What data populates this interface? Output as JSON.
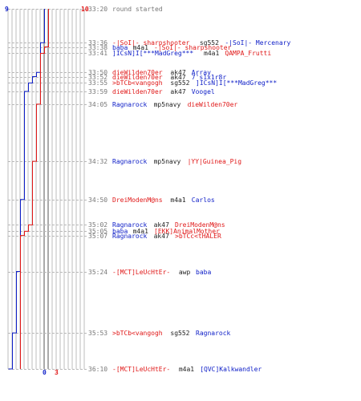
{
  "score_labels": {
    "blue_start": "9",
    "red_start": "10",
    "blue_end": "0",
    "red_end": "3"
  },
  "colors": {
    "blue": "#1020c8",
    "red": "#e01818",
    "dark": "#222222",
    "gray": "#777777",
    "grid": "#bdbdbd",
    "grid_dark": "#555555",
    "dash": "#b8b8b8"
  },
  "events": [
    {
      "time": "33:20",
      "parts": [
        {
          "t": "round started",
          "c": "gray"
        }
      ]
    },
    {
      "time": "33:36",
      "parts": [
        {
          "t": "-|SoI|- sharpshooter",
          "c": "red"
        },
        {
          "t": " sg552 ",
          "c": "dark"
        },
        {
          "t": "-|SoI|- Mercenary",
          "c": "blue"
        }
      ]
    },
    {
      "time": "33:38",
      "parts": [
        {
          "t": "baba",
          "c": "blue"
        },
        {
          "t": " m4a1 ",
          "c": "dark"
        },
        {
          "t": "-|SoI|- sharpshooter",
          "c": "red"
        }
      ]
    },
    {
      "time": "33:41",
      "parts": [
        {
          "t": "]ICsN]I[***MadGreg***",
          "c": "blue"
        },
        {
          "t": " m4a1 ",
          "c": "dark"
        },
        {
          "t": "QAMPA_Frutti",
          "c": "red"
        }
      ]
    },
    {
      "time": "33:50",
      "parts": [
        {
          "t": "dieWilden70er",
          "c": "red"
        },
        {
          "t": " ak47 ",
          "c": "dark"
        },
        {
          "t": "Array",
          "c": "blue"
        }
      ]
    },
    {
      "time": "33:52",
      "parts": [
        {
          "t": "dieWilden70er",
          "c": "red"
        },
        {
          "t": " ak47 ",
          "c": "dark"
        },
        {
          "t": "7's1x1r8r",
          "c": "blue"
        }
      ]
    },
    {
      "time": "33:55",
      "parts": [
        {
          "t": ">bTCb<vangogh",
          "c": "red"
        },
        {
          "t": " sg552 ",
          "c": "dark"
        },
        {
          "t": "]ICsN]I[***MadGreg***",
          "c": "blue"
        }
      ]
    },
    {
      "time": "33:59",
      "parts": [
        {
          "t": "dieWilden70er",
          "c": "red"
        },
        {
          "t": " ak47 ",
          "c": "dark"
        },
        {
          "t": "Voogel",
          "c": "blue"
        }
      ]
    },
    {
      "time": "34:05",
      "parts": [
        {
          "t": "Ragnarock",
          "c": "blue"
        },
        {
          "t": " mp5navy ",
          "c": "dark"
        },
        {
          "t": "dieWilden70er",
          "c": "red"
        }
      ]
    },
    {
      "time": "34:32",
      "parts": [
        {
          "t": "Ragnarock",
          "c": "blue"
        },
        {
          "t": " mp5navy ",
          "c": "dark"
        },
        {
          "t": "|YY|Guinea_Pig",
          "c": "red"
        }
      ]
    },
    {
      "time": "34:50",
      "parts": [
        {
          "t": "DreiModenM@ns",
          "c": "red"
        },
        {
          "t": " m4a1 ",
          "c": "dark"
        },
        {
          "t": "Carlos",
          "c": "blue"
        }
      ]
    },
    {
      "time": "35:02",
      "parts": [
        {
          "t": "Ragnarock",
          "c": "blue"
        },
        {
          "t": " ak47 ",
          "c": "dark"
        },
        {
          "t": "DreiModenM@ns",
          "c": "red"
        }
      ]
    },
    {
      "time": "35:05",
      "parts": [
        {
          "t": "baba",
          "c": "blue"
        },
        {
          "t": " m4a1 ",
          "c": "dark"
        },
        {
          "t": "[EKK]AnimalMother",
          "c": "red"
        }
      ]
    },
    {
      "time": "35:07",
      "parts": [
        {
          "t": "Ragnarock",
          "c": "blue"
        },
        {
          "t": " ak47 ",
          "c": "dark"
        },
        {
          "t": ">bTCc<tHALER",
          "c": "red"
        }
      ]
    },
    {
      "time": "35:24",
      "parts": [
        {
          "t": "-[MCT]LeUcHtEr-",
          "c": "red"
        },
        {
          "t": " awp ",
          "c": "dark"
        },
        {
          "t": "baba",
          "c": "blue"
        }
      ]
    },
    {
      "time": "35:53",
      "parts": [
        {
          "t": ">bTCb<vangogh",
          "c": "red"
        },
        {
          "t": " sg552 ",
          "c": "dark"
        },
        {
          "t": "Ragnarock",
          "c": "blue"
        }
      ]
    },
    {
      "time": "36:10",
      "parts": [
        {
          "t": "-[MCT]LeUcHtEr-",
          "c": "red"
        },
        {
          "t": " m4a1 ",
          "c": "dark"
        },
        {
          "t": "[QVC]Kalkwandler",
          "c": "blue"
        }
      ]
    }
  ]
}
